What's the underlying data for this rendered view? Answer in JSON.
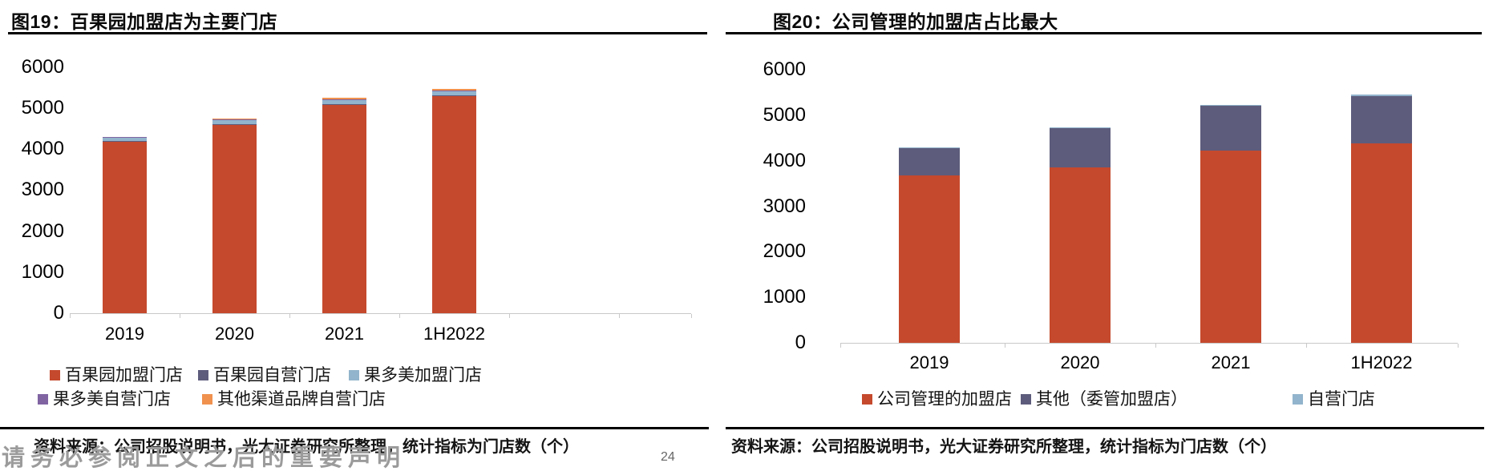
{
  "panels": [
    {
      "title": "图19：百果园加盟店为主要门店",
      "source": "资料来源：公司招股说明书，光大证券研究所整理，统计指标为门店数（个）"
    },
    {
      "title": "图20：公司管理的加盟店占比最大",
      "source": "资料来源：公司招股说明书，光大证券研究所整理，统计指标为门店数（个）"
    }
  ],
  "watermark": {
    "text": "请务必参阅正文之后的重要声明",
    "page_marker": "24"
  },
  "chart_data": [
    {
      "type": "bar",
      "stacked": true,
      "title": "图19：百果园加盟店为主要门店",
      "categories": [
        "2019",
        "2020",
        "2021",
        "1H2022"
      ],
      "series": [
        {
          "name": "百果园加盟门店",
          "color": "#C5492D",
          "values": [
            4180,
            4590,
            5075,
            5300
          ]
        },
        {
          "name": "百果园自营门店",
          "color": "#5D5C7C",
          "values": [
            10,
            10,
            10,
            10
          ]
        },
        {
          "name": "果多美加盟门店",
          "color": "#92B4CC",
          "values": [
            70,
            95,
            95,
            100
          ]
        },
        {
          "name": "果多美自营门店",
          "color": "#8064A2",
          "values": [
            25,
            12,
            12,
            12
          ]
        },
        {
          "name": "其他渠道品牌自营门店",
          "color": "#F0914E",
          "values": [
            0,
            30,
            38,
            30
          ]
        }
      ],
      "totals": [
        4285,
        4737,
        5230,
        5452
      ],
      "ylabel": "门店数（个）",
      "ylim": [
        0,
        6000
      ],
      "yticks": [
        0,
        1000,
        2000,
        3000,
        4000,
        5000,
        6000
      ],
      "grid": false,
      "legend_position": "bottom"
    },
    {
      "type": "bar",
      "stacked": true,
      "title": "图20：公司管理的加盟店占比最大",
      "categories": [
        "2019",
        "2020",
        "2021",
        "1H2022"
      ],
      "series": [
        {
          "name": "公司管理的加盟店",
          "color": "#C5492D",
          "values": [
            3680,
            3855,
            4220,
            4380
          ]
        },
        {
          "name": "其他（委管加盟店）",
          "color": "#5D5C7C",
          "values": [
            590,
            860,
            990,
            1040
          ]
        },
        {
          "name": "自营门店",
          "color": "#92B4CC",
          "values": [
            15,
            20,
            20,
            30
          ]
        }
      ],
      "totals": [
        4285,
        4735,
        5230,
        5450
      ],
      "ylabel": "门店数（个）",
      "ylim": [
        0,
        6000
      ],
      "yticks": [
        0,
        1000,
        2000,
        3000,
        4000,
        5000,
        6000
      ],
      "grid": false,
      "legend_position": "bottom"
    }
  ]
}
